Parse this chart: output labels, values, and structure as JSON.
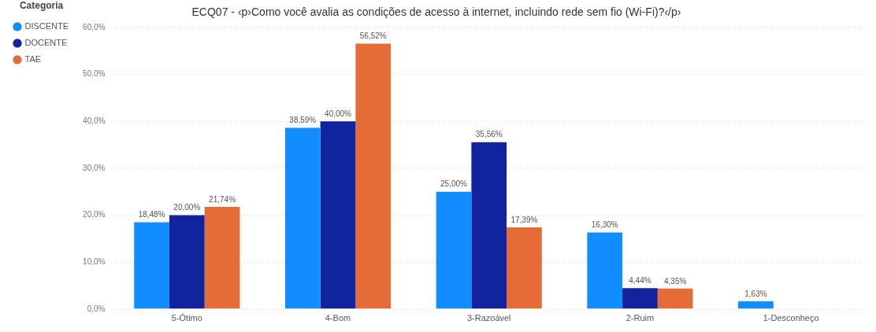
{
  "chart_data": {
    "type": "bar",
    "title": "ECQ07 - ‹p›Como você avalia as condições de acesso à internet, incluindo rede sem fio (Wi-Fi)?‹/p›",
    "legend_title": "Categoria",
    "legend": "top left",
    "grid": "y",
    "categories": [
      "5-Ótimo",
      "4-Bom",
      "3-Razoável",
      "2-Ruim",
      "1-Desconheço"
    ],
    "ylim": [
      0,
      60
    ],
    "yticks": [
      {
        "value": 0,
        "label": "0,0%"
      },
      {
        "value": 10,
        "label": "10,0%"
      },
      {
        "value": 20,
        "label": "20,0%"
      },
      {
        "value": 30,
        "label": "30,0%"
      },
      {
        "value": 40,
        "label": "40,0%"
      },
      {
        "value": 50,
        "label": "50,0%"
      },
      {
        "value": 60,
        "label": "60,0%"
      }
    ],
    "series": [
      {
        "name": "DISCENTE",
        "color": "#118dff",
        "values": [
          18.48,
          38.59,
          25.0,
          16.3,
          1.63
        ],
        "value_labels": [
          "18,48%",
          "38,59%",
          "25,00%",
          "16,30%",
          "1,63%"
        ]
      },
      {
        "name": "DOCENTE",
        "color": "#12239e",
        "values": [
          20.0,
          40.0,
          35.56,
          4.44,
          null
        ],
        "value_labels": [
          "20,00%",
          "40,00%",
          "35,56%",
          "4,44%",
          null
        ]
      },
      {
        "name": "TAE",
        "color": "#e66c37",
        "values": [
          21.74,
          56.52,
          17.39,
          4.35,
          null
        ],
        "value_labels": [
          "21,74%",
          "56,52%",
          "17,39%",
          "4,35%",
          null
        ]
      }
    ]
  }
}
